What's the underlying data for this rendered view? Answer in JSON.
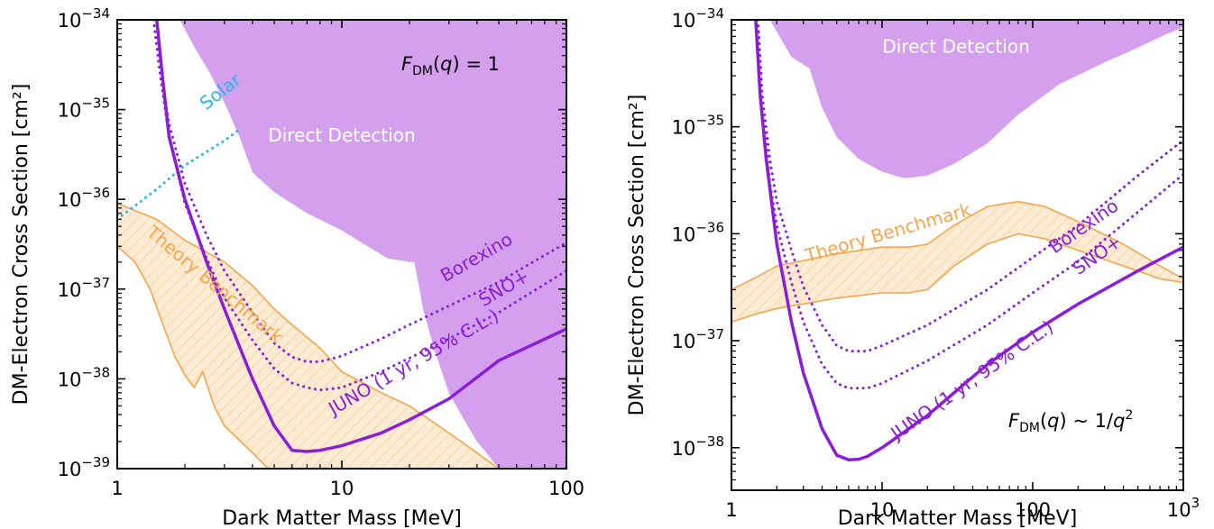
{
  "chart_data": [
    {
      "type": "line",
      "xlabel": "Dark Matter Mass [MeV]",
      "ylabel": "DM-Electron Cross Section [cm²]",
      "xscale": "log",
      "yscale": "log",
      "xlim": [
        1,
        100
      ],
      "ylim": [
        1e-39,
        1e-34
      ],
      "x_ticks": [
        {
          "value": 1,
          "label": "1"
        },
        {
          "value": 10,
          "label": "10"
        },
        {
          "value": 100,
          "label": "100"
        }
      ],
      "y_ticks": [
        {
          "value": 1e-39,
          "base": "10",
          "exp": "−39"
        },
        {
          "value": 1e-38,
          "base": "10",
          "exp": "−38"
        },
        {
          "value": 1e-37,
          "base": "10",
          "exp": "−37"
        },
        {
          "value": 1e-36,
          "base": "10",
          "exp": "−36"
        },
        {
          "value": 1e-35,
          "base": "10",
          "exp": "−35"
        },
        {
          "value": 1e-34,
          "base": "10",
          "exp": "−34"
        }
      ],
      "annotation": "F_DM(q) = 1",
      "regions": [
        {
          "name": "Direct Detection",
          "color": "#d4a0ee",
          "label_at": [
            10,
            5e-36
          ],
          "points": [
            [
              1.9,
              1e-34
            ],
            [
              2.2,
              5e-35
            ],
            [
              2.6,
              2.5e-35
            ],
            [
              3.0,
              1.2e-35
            ],
            [
              3.5,
              5e-36
            ],
            [
              4.0,
              2e-36
            ],
            [
              5.0,
              1.2e-36
            ],
            [
              7.0,
              7e-37
            ],
            [
              10,
              4.5e-37
            ],
            [
              13,
              3e-37
            ],
            [
              16,
              2.2e-37
            ],
            [
              20,
              2e-37
            ],
            [
              21,
              2e-37
            ],
            [
              21.5,
              1.5e-37
            ],
            [
              23,
              6e-38
            ],
            [
              26,
              2e-38
            ],
            [
              30,
              7e-39
            ],
            [
              35,
              3.5e-39
            ],
            [
              40,
              2e-39
            ],
            [
              45,
              1.4e-39
            ],
            [
              50,
              1e-39
            ],
            [
              100,
              1e-39
            ],
            [
              100,
              1e-34
            ]
          ]
        },
        {
          "name": "Theory Benchmark",
          "color": "#f5a44c",
          "fill": "#fdecd3",
          "label_at": [
            2.7,
            1.1e-37
          ],
          "label_angle": 40,
          "upper": [
            [
              1,
              9e-37
            ],
            [
              1.5,
              6e-37
            ],
            [
              2,
              3.5e-37
            ],
            [
              3,
              2e-37
            ],
            [
              4,
              1.1e-37
            ],
            [
              5,
              6e-38
            ],
            [
              6,
              4e-38
            ],
            [
              8,
              2.2e-38
            ],
            [
              10,
              1.2e-38
            ],
            [
              15,
              7e-39
            ],
            [
              20,
              5e-39
            ],
            [
              30,
              2.5e-39
            ],
            [
              40,
              1.5e-39
            ],
            [
              50,
              1e-39
            ]
          ],
          "lower": [
            [
              1,
              3e-37
            ],
            [
              1.2,
              2e-37
            ],
            [
              1.4,
              1e-37
            ],
            [
              1.6,
              4e-38
            ],
            [
              1.8,
              1.8e-38
            ],
            [
              2,
              1.1e-38
            ],
            [
              2.2,
              8e-39
            ],
            [
              2.4,
              1.2e-38
            ],
            [
              2.7,
              5e-39
            ],
            [
              3,
              3e-39
            ],
            [
              4,
              1.5e-39
            ],
            [
              4.7,
              1e-39
            ]
          ]
        }
      ],
      "series": [
        {
          "name": "Solar",
          "color": "#29b6f0",
          "style": "dotted",
          "label_at": [
            2.9,
            1.55e-35
          ],
          "label_angle": -38,
          "points": [
            [
              1,
              6e-37
            ],
            [
              1.5,
              1.3e-36
            ],
            [
              2,
              2.4e-36
            ],
            [
              3,
              4.5e-36
            ],
            [
              3.5,
              6e-36
            ]
          ]
        },
        {
          "name": "Borexino",
          "color": "#8a1ed6",
          "style": "dotted",
          "label_at": [
            40,
            2.2e-37
          ],
          "label_angle": -30,
          "points": [
            [
              1.45,
              1e-34
            ],
            [
              1.55,
              3e-35
            ],
            [
              1.7,
              7e-36
            ],
            [
              2,
              1.5e-36
            ],
            [
              2.5,
              4e-37
            ],
            [
              3,
              1.6e-37
            ],
            [
              4,
              5.5e-38
            ],
            [
              5,
              2.5e-38
            ],
            [
              6,
              1.75e-38
            ],
            [
              7,
              1.55e-38
            ],
            [
              8,
              1.55e-38
            ],
            [
              10,
              1.8e-38
            ],
            [
              15,
              2.8e-38
            ],
            [
              20,
              4e-38
            ],
            [
              30,
              6.5e-38
            ],
            [
              50,
              1.2e-37
            ],
            [
              100,
              3.3e-37
            ]
          ]
        },
        {
          "name": "SNO+",
          "color": "#8a1ed6",
          "style": "dotted",
          "label_at": [
            53,
            1e-37
          ],
          "label_angle": -30,
          "points": [
            [
              1.45,
              1e-34
            ],
            [
              1.55,
              2.5e-35
            ],
            [
              1.7,
              5e-36
            ],
            [
              2,
              9e-37
            ],
            [
              2.5,
              2.2e-37
            ],
            [
              3,
              8e-38
            ],
            [
              4,
              2.7e-38
            ],
            [
              5,
              1.3e-38
            ],
            [
              6,
              9e-39
            ],
            [
              7,
              8e-39
            ],
            [
              8,
              7.5e-39
            ],
            [
              10,
              8e-39
            ],
            [
              15,
              1.2e-38
            ],
            [
              20,
              1.7e-38
            ],
            [
              30,
              2.8e-38
            ],
            [
              50,
              5.5e-38
            ],
            [
              100,
              1.6e-37
            ]
          ]
        },
        {
          "name": "JUNO (1 yr, 95% C.L.)",
          "color": "#8a1ed6",
          "style": "solid",
          "label_at": [
            21,
            1.5e-38
          ],
          "label_angle": -30,
          "points": [
            [
              1.5,
              1e-34
            ],
            [
              1.6,
              2e-35
            ],
            [
              1.7,
              5e-36
            ],
            [
              2,
              1e-36
            ],
            [
              2.5,
              2e-37
            ],
            [
              3,
              6e-38
            ],
            [
              4,
              1e-38
            ],
            [
              5,
              3e-39
            ],
            [
              6,
              1.6e-39
            ],
            [
              7,
              1.55e-39
            ],
            [
              8,
              1.6e-39
            ],
            [
              10,
              1.8e-39
            ],
            [
              15,
              2.5e-39
            ],
            [
              20,
              3.5e-39
            ],
            [
              30,
              6e-39
            ],
            [
              50,
              1.6e-38
            ],
            [
              100,
              3.6e-38
            ]
          ]
        }
      ]
    },
    {
      "type": "line",
      "xlabel": "Dark Matter Mass [MeV]",
      "ylabel": "DM-Electron Cross Section [cm²]",
      "xscale": "log",
      "yscale": "log",
      "xlim": [
        1,
        1000
      ],
      "ylim": [
        4e-39,
        1e-34
      ],
      "x_ticks": [
        {
          "value": 1,
          "label": "1"
        },
        {
          "value": 10,
          "label": "10"
        },
        {
          "value": 100,
          "label": "100"
        },
        {
          "value": 1000,
          "label": "10",
          "exp": "3"
        }
      ],
      "y_ticks": [
        {
          "value": 1e-38,
          "base": "10",
          "exp": "−38"
        },
        {
          "value": 1e-37,
          "base": "10",
          "exp": "−37"
        },
        {
          "value": 1e-36,
          "base": "10",
          "exp": "−36"
        },
        {
          "value": 1e-35,
          "base": "10",
          "exp": "−35"
        },
        {
          "value": 1e-34,
          "base": "10",
          "exp": "−34"
        }
      ],
      "annotation": "F_DM(q) ~ 1/q²",
      "regions": [
        {
          "name": "Direct Detection",
          "color": "#d4a0ee",
          "label_at": [
            31,
            5.5e-35
          ],
          "points": [
            [
              1.8,
              1e-34
            ],
            [
              2.5,
              4.5e-35
            ],
            [
              3.3,
              3.5e-35
            ],
            [
              4,
              1.5e-35
            ],
            [
              5,
              8e-36
            ],
            [
              7,
              5e-36
            ],
            [
              10,
              3.8e-36
            ],
            [
              14,
              3.3e-36
            ],
            [
              20,
              3.5e-36
            ],
            [
              30,
              4.5e-36
            ],
            [
              50,
              7e-36
            ],
            [
              80,
              1.3e-35
            ],
            [
              150,
              2.5e-35
            ],
            [
              300,
              4e-35
            ],
            [
              500,
              5.5e-35
            ],
            [
              800,
              7.5e-35
            ],
            [
              1000,
              8.5e-35
            ],
            [
              1000,
              1e-34
            ]
          ]
        },
        {
          "name": "Theory Benchmark",
          "color": "#f5a44c",
          "fill": "#fdecd3",
          "label_at": [
            11,
            1e-36
          ],
          "label_angle": -16,
          "upper": [
            [
              1,
              3e-37
            ],
            [
              1.5,
              4e-37
            ],
            [
              2,
              5e-37
            ],
            [
              5,
              6.5e-37
            ],
            [
              10,
              7.5e-37
            ],
            [
              15,
              7.5e-37
            ],
            [
              20,
              8e-37
            ],
            [
              30,
              1.2e-36
            ],
            [
              50,
              1.8e-36
            ],
            [
              80,
              2e-36
            ],
            [
              120,
              1.8e-36
            ],
            [
              200,
              1.3e-36
            ],
            [
              400,
              8e-37
            ],
            [
              700,
              5e-37
            ],
            [
              1000,
              3.8e-37
            ]
          ],
          "lower": [
            [
              1,
              1.5e-37
            ],
            [
              1.5,
              1.8e-37
            ],
            [
              2,
              2e-37
            ],
            [
              5,
              2.5e-37
            ],
            [
              10,
              2.8e-37
            ],
            [
              15,
              2.8e-37
            ],
            [
              20,
              3e-37
            ],
            [
              30,
              5e-37
            ],
            [
              50,
              8e-37
            ],
            [
              80,
              1e-36
            ],
            [
              120,
              9e-37
            ],
            [
              200,
              7e-37
            ],
            [
              400,
              5e-37
            ],
            [
              700,
              3.8e-37
            ],
            [
              1000,
              3.5e-37
            ]
          ]
        }
      ],
      "series": [
        {
          "name": "Borexino",
          "color": "#8a1ed6",
          "style": "dotted",
          "label_at": [
            220,
            1.15e-36
          ],
          "label_angle": -35,
          "points": [
            [
              1.5,
              1e-34
            ],
            [
              1.6,
              2e-35
            ],
            [
              1.8,
              5e-36
            ],
            [
              2,
              2e-36
            ],
            [
              2.5,
              7e-37
            ],
            [
              3,
              3.2e-37
            ],
            [
              4,
              1.4e-37
            ],
            [
              5,
              9e-38
            ],
            [
              6,
              8e-38
            ],
            [
              8,
              8e-38
            ],
            [
              10,
              9e-38
            ],
            [
              20,
              1.4e-37
            ],
            [
              50,
              3e-37
            ],
            [
              100,
              6e-37
            ],
            [
              200,
              1.2e-36
            ],
            [
              500,
              3.5e-36
            ],
            [
              1000,
              7.5e-36
            ]
          ]
        },
        {
          "name": "SNO+",
          "color": "#8a1ed6",
          "style": "dotted",
          "label_at": [
            270,
            6.2e-37
          ],
          "label_angle": -35,
          "points": [
            [
              1.5,
              1e-34
            ],
            [
              1.6,
              1.5e-35
            ],
            [
              1.8,
              3e-36
            ],
            [
              2,
              1.2e-36
            ],
            [
              2.5,
              3.5e-37
            ],
            [
              3,
              1.5e-37
            ],
            [
              4,
              6e-38
            ],
            [
              5,
              4e-38
            ],
            [
              6,
              3.6e-38
            ],
            [
              8,
              3.6e-38
            ],
            [
              10,
              4e-38
            ],
            [
              20,
              6.5e-38
            ],
            [
              50,
              1.4e-37
            ],
            [
              100,
              2.8e-37
            ],
            [
              200,
              5.5e-37
            ],
            [
              500,
              1.6e-36
            ],
            [
              1000,
              3.6e-36
            ]
          ]
        },
        {
          "name": "JUNO (1 yr, 95% C.L.)",
          "color": "#8a1ed6",
          "style": "solid",
          "label_at": [
            40,
            4.2e-38
          ],
          "label_angle": -35,
          "points": [
            [
              1.45,
              1e-34
            ],
            [
              1.55,
              2e-35
            ],
            [
              1.7,
              5e-36
            ],
            [
              2,
              8e-37
            ],
            [
              2.5,
              1.5e-37
            ],
            [
              3,
              5e-38
            ],
            [
              4,
              1.5e-38
            ],
            [
              5,
              8.5e-39
            ],
            [
              6,
              7.7e-39
            ],
            [
              7,
              7.8e-39
            ],
            [
              8,
              8.3e-39
            ],
            [
              10,
              1e-38
            ],
            [
              20,
              2e-38
            ],
            [
              50,
              6e-38
            ],
            [
              100,
              1.2e-37
            ],
            [
              200,
              2.2e-37
            ],
            [
              500,
              4.5e-37
            ],
            [
              1000,
              7.5e-37
            ]
          ]
        }
      ]
    }
  ]
}
